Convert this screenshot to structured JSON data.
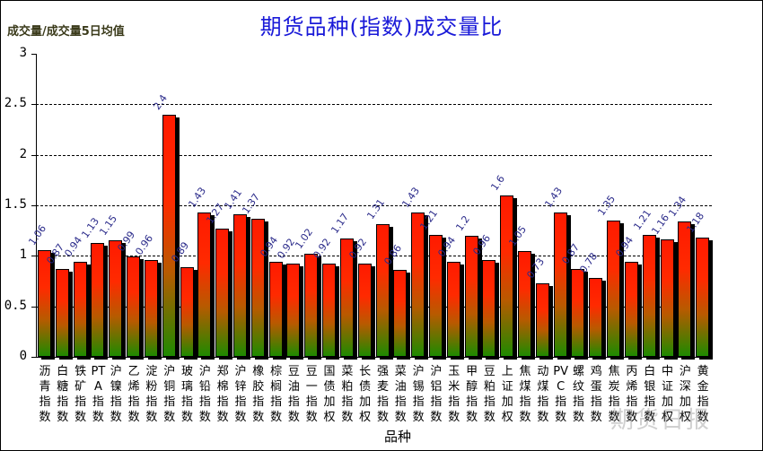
{
  "chart_data": {
    "type": "bar",
    "title": "期货品种(指数)成交量比",
    "ylabel": "成交量/成交量5日均值",
    "xlabel": "品种",
    "ylim": [
      0,
      3
    ],
    "yticks": [
      "0",
      "0.5",
      "1",
      "1.5",
      "2",
      "2.5",
      "3"
    ],
    "grid": "horizontal dashed",
    "legend": "none",
    "categories": [
      "沥青指数",
      "白糖指数",
      "铁矿指数",
      "PTA指数",
      "沪镍指数",
      "乙烯指数",
      "淀粉指数",
      "沪铜指数",
      "玻璃指数",
      "沪铅指数",
      "郑棉指数",
      "沪锌指数",
      "橡胶指数",
      "棕榈指数",
      "豆油指数",
      "豆一指数",
      "国债加权",
      "菜粕指数",
      "长债加权",
      "强麦指数",
      "菜油指数",
      "沪锡指数",
      "沪铝指数",
      "玉米指数",
      "甲醇指数",
      "豆粕指数",
      "上证加权",
      "焦煤指数",
      "动煤指数",
      "PVC指数",
      "螺纹指数",
      "鸡蛋指数",
      "焦炭指数",
      "丙烯指数",
      "白银指数",
      "中证加权",
      "沪深加权",
      "黄金指数"
    ],
    "values": [
      1.06,
      0.87,
      0.94,
      1.13,
      1.15,
      0.99,
      0.96,
      2.4,
      0.89,
      1.43,
      1.27,
      1.41,
      1.37,
      0.94,
      0.92,
      1.02,
      0.92,
      1.17,
      0.92,
      1.31,
      0.86,
      1.43,
      1.21,
      0.94,
      1.2,
      0.96,
      1.6,
      1.05,
      0.73,
      1.43,
      0.87,
      0.78,
      1.35,
      0.94,
      1.21,
      1.16,
      1.34,
      1.18
    ],
    "value_labels": [
      "1.06",
      "0.87",
      "0.94",
      "1.13",
      "1.15",
      "0.99",
      "0.96",
      "2.4",
      "0.89",
      "1.43",
      "1.27",
      "1.41",
      "1.37",
      "0.94",
      "0.92",
      "1.02",
      "0.92",
      "1.17",
      "0.92",
      "1.31",
      "0.86",
      "1.43",
      "1.21",
      "0.94",
      "1.2",
      "0.96",
      "1.6",
      "1.05",
      "0.73",
      "1.43",
      "0.87",
      "0.78",
      "1.35",
      "0.94",
      "1.21",
      "1.16",
      "1.34",
      "1.18"
    ]
  },
  "colors": {
    "title": "#1a1ad8",
    "bar_top": "#ff1a00",
    "bar_bottom": "#1e8a00",
    "value_label": "#2a2a8a"
  },
  "watermark": "期货日报"
}
